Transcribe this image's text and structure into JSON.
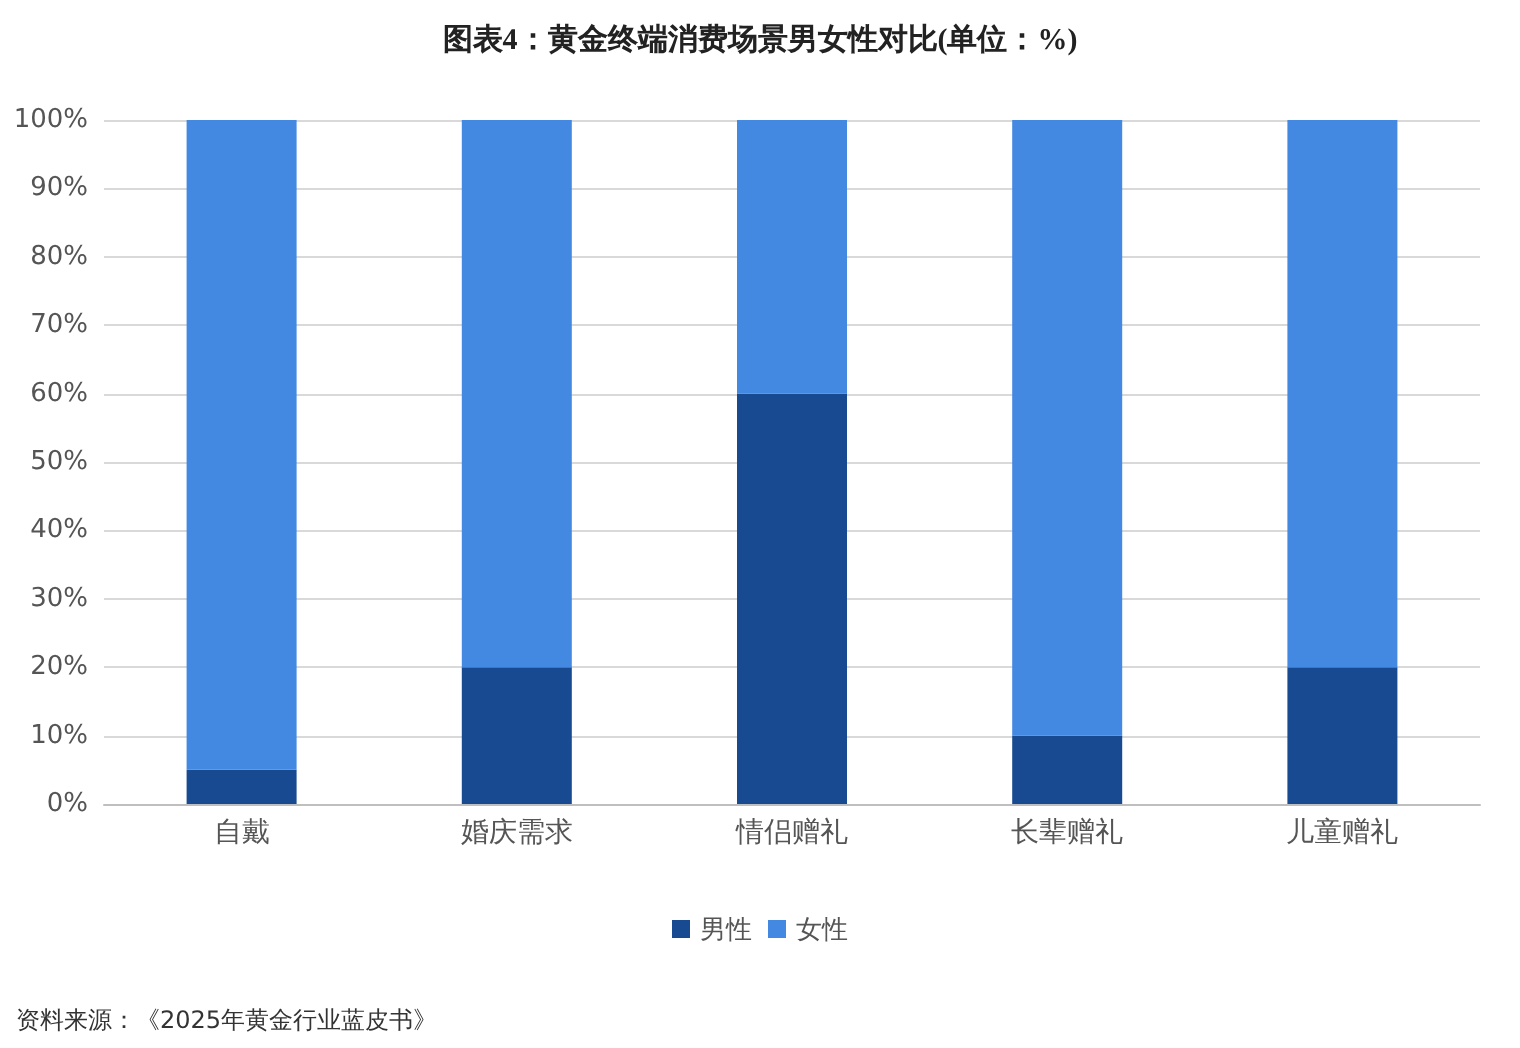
{
  "chart_data": {
    "type": "bar",
    "title": "图表4：黄金终端消费场景男女性对比(单位：%)",
    "categories": [
      "自戴",
      "婚庆需求",
      "情侣赠礼",
      "长辈赠礼",
      "儿童赠礼"
    ],
    "stacked": true,
    "series": [
      {
        "name": "男性",
        "color": "#174a90",
        "values": [
          5,
          20,
          60,
          10,
          20
        ]
      },
      {
        "name": "女性",
        "color": "#4389e2",
        "values": [
          95,
          80,
          40,
          90,
          80
        ]
      }
    ],
    "ylim": [
      0,
      100
    ],
    "yticks": [
      {
        "value": 0,
        "label": "0%"
      },
      {
        "value": 10,
        "label": "10%"
      },
      {
        "value": 20,
        "label": "20%"
      },
      {
        "value": 30,
        "label": "30%"
      },
      {
        "value": 40,
        "label": "40%"
      },
      {
        "value": 50,
        "label": "50%"
      },
      {
        "value": 60,
        "label": "60%"
      },
      {
        "value": 70,
        "label": "70%"
      },
      {
        "value": 80,
        "label": "80%"
      },
      {
        "value": 90,
        "label": "90%"
      },
      {
        "value": 100,
        "label": "100%"
      }
    ],
    "grid": "y",
    "legend": "bottom",
    "annotations": [
      "资料来源：《2025年黄金行业蓝皮书》"
    ]
  }
}
